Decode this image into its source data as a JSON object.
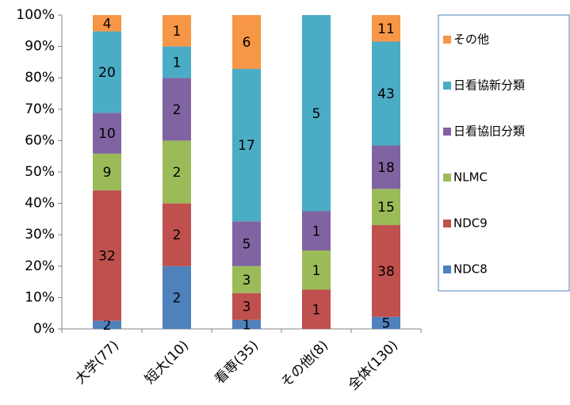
{
  "chart_data": {
    "type": "bar",
    "stacking": "percent",
    "categories": [
      "大学(77)",
      "短大(10)",
      "看専(35)",
      "その他(8)",
      "全体(130)"
    ],
    "series": [
      {
        "name": "NDC8",
        "color": "#4f81bd",
        "values": [
          2,
          2,
          1,
          null,
          5
        ]
      },
      {
        "name": "NDC9",
        "color": "#c0504d",
        "values": [
          32,
          2,
          3,
          1,
          38
        ]
      },
      {
        "name": "NLMC",
        "color": "#9bbb59",
        "values": [
          9,
          2,
          3,
          1,
          15
        ]
      },
      {
        "name": "日看協旧分類",
        "color": "#8064a2",
        "values": [
          10,
          2,
          5,
          1,
          18
        ]
      },
      {
        "name": "日看協新分類",
        "color": "#4bacc6",
        "values": [
          20,
          1,
          17,
          5,
          43
        ]
      },
      {
        "name": "その他",
        "color": "#f79646",
        "values": [
          4,
          1,
          6,
          null,
          11
        ]
      }
    ],
    "ylim": [
      0,
      100
    ],
    "yticks": [
      {
        "value": 0,
        "label": "0%"
      },
      {
        "value": 10,
        "label": "10%"
      },
      {
        "value": 20,
        "label": "20%"
      },
      {
        "value": 30,
        "label": "30%"
      },
      {
        "value": 40,
        "label": "40%"
      },
      {
        "value": 50,
        "label": "50%"
      },
      {
        "value": 60,
        "label": "60%"
      },
      {
        "value": 70,
        "label": "70%"
      },
      {
        "value": 80,
        "label": "80%"
      },
      {
        "value": 90,
        "label": "90%"
      },
      {
        "value": 100,
        "label": "100%"
      }
    ],
    "legend": "right"
  }
}
